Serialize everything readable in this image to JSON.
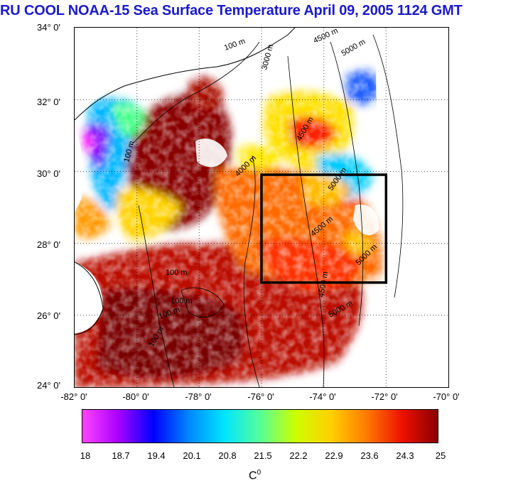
{
  "title": "RU COOL  NOAA-15 Sea Surface Temperature April 09, 2005 1124 GMT",
  "map": {
    "lat_labels": [
      "34° 0'",
      "32° 0'",
      "30° 0'",
      "28° 0'",
      "26° 0'",
      "24° 0'"
    ],
    "lon_labels": [
      "-82° 0'",
      "-80° 0'",
      "-78° 0'",
      "-76° 0'",
      "-74° 0'",
      "-72° 0'",
      "-70° 0'"
    ],
    "lat_range": [
      24,
      34
    ],
    "lon_range": [
      -82,
      -70
    ],
    "box": {
      "lon_min": -76,
      "lon_max": -72,
      "lat_min": 27,
      "lat_max": 30
    },
    "contour_labels": [
      "100 m",
      "3000 m",
      "4500 m",
      "5000 m",
      "100 m",
      "4000 m",
      "4500 m",
      "5000 m",
      "100 m",
      "4500 m",
      "5000 m",
      "100 m",
      "100 m",
      "100 m",
      "4500 m",
      "5000 m"
    ]
  },
  "colorbar": {
    "ticks": [
      "18",
      "18.7",
      "19.4",
      "20.1",
      "20.8",
      "21.5",
      "22.2",
      "22.9",
      "23.6",
      "24.3",
      "25"
    ],
    "unit": "C",
    "unit_sup": "0",
    "colors": [
      "#ff44ff",
      "#aa00ff",
      "#0000ff",
      "#0088ff",
      "#00e5ff",
      "#55ff99",
      "#ccff00",
      "#ffd000",
      "#ff7a00",
      "#ee1100",
      "#880000"
    ]
  }
}
